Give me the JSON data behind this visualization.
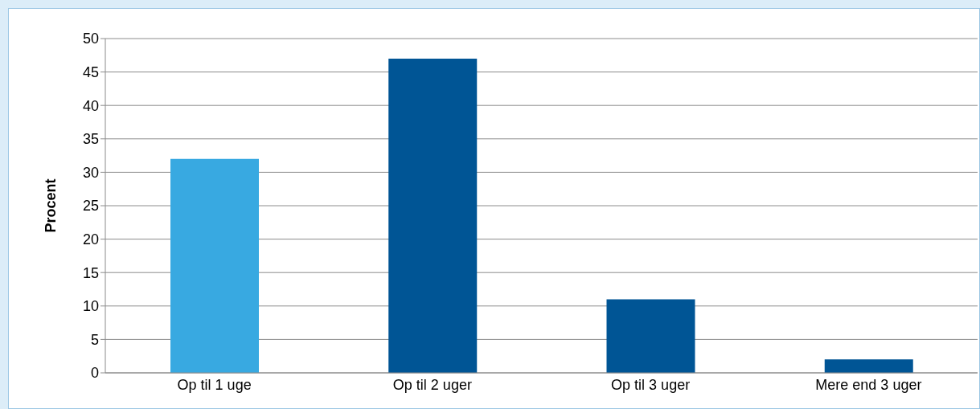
{
  "chart_data": {
    "type": "bar",
    "ylabel": "Procent",
    "categories": [
      "Op til 1 uge",
      "Op til 2 uger",
      "Op til 3 uger",
      "Mere end 3 uger"
    ],
    "values": [
      32,
      47,
      11,
      2
    ],
    "colors": [
      "#38a9e1",
      "#005595",
      "#005595",
      "#005595"
    ],
    "ylim": [
      0,
      50
    ],
    "yticks": [
      0,
      5,
      10,
      15,
      20,
      25,
      30,
      35,
      40,
      45,
      50
    ],
    "grid": "y"
  }
}
